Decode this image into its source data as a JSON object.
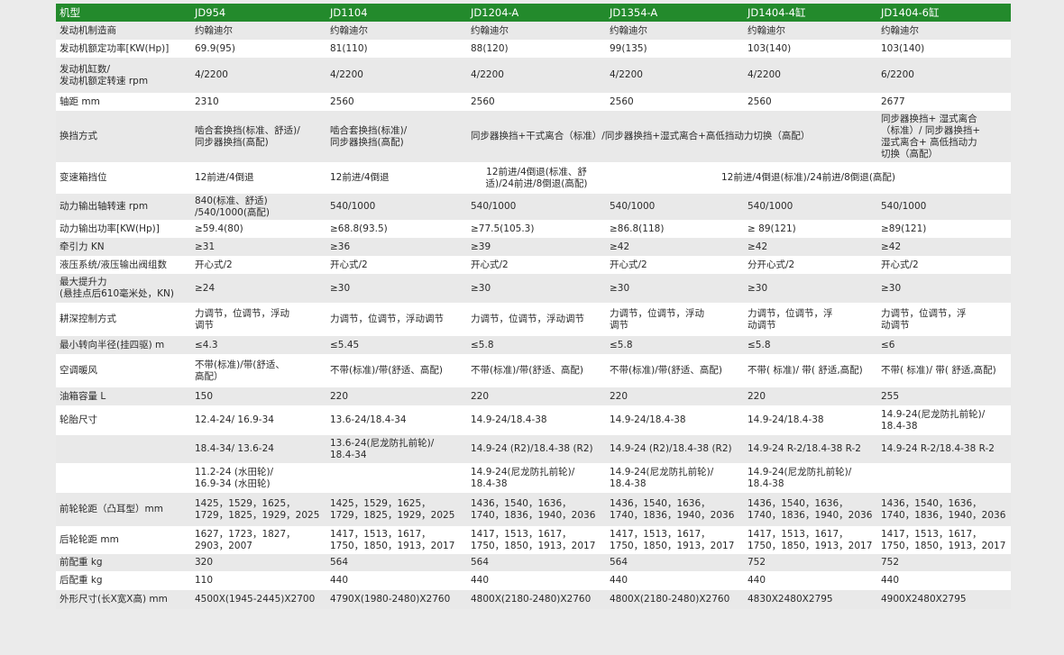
{
  "header": {
    "label": "机型",
    "models": [
      "JD954",
      "JD1104",
      "JD1204-A",
      "JD1354-A",
      "JD1404-4缸",
      "JD1404-6缸"
    ]
  },
  "colors": {
    "header_bg": "#238a2c",
    "row_alt": "#e9e9e9",
    "row": "#ffffff"
  },
  "rows": [
    {
      "label": "发动机制造商",
      "cells": [
        {
          "text": "约翰迪尔"
        },
        {
          "text": "约翰迪尔"
        },
        {
          "text": "约翰迪尔"
        },
        {
          "text": "约翰迪尔"
        },
        {
          "text": "约翰迪尔"
        },
        {
          "text": "约翰迪尔"
        }
      ]
    },
    {
      "label": "发动机额定功率[KW(Hp)]",
      "cells": [
        {
          "text": "69.9(95)"
        },
        {
          "text": "81(110)"
        },
        {
          "text": "88(120)"
        },
        {
          "text": "99(135)"
        },
        {
          "text": "103(140)"
        },
        {
          "text": "103(140)"
        }
      ]
    },
    {
      "label": "发动机缸数/\n发动机额定转速 rpm",
      "cells": [
        {
          "text": "4/2200"
        },
        {
          "text": "4/2200"
        },
        {
          "text": "4/2200"
        },
        {
          "text": "4/2200"
        },
        {
          "text": "4/2200"
        },
        {
          "text": "6/2200"
        }
      ]
    },
    {
      "label": "轴距 mm",
      "cells": [
        {
          "text": "2310"
        },
        {
          "text": "2560"
        },
        {
          "text": "2560"
        },
        {
          "text": "2560"
        },
        {
          "text": "2560"
        },
        {
          "text": "2677"
        }
      ]
    },
    {
      "label": "换挡方式",
      "cells": [
        {
          "text": "啮合套换挡(标准、舒适)/\n同步器换挡(高配)"
        },
        {
          "text": "啮合套换挡(标准)/\n同步器换挡(高配)"
        },
        {
          "text": "同步器换挡+干式离合（标准）/同步器换挡+湿式离合+高低挡动力切换（高配）",
          "colspan": 3
        },
        {
          "text": "同步器换挡+ 湿式离合\n（标准）/ 同步器换挡+\n湿式离合+ 高低挡动力\n切换（高配）"
        }
      ]
    },
    {
      "label": "变速箱挡位",
      "cells": [
        {
          "text": "12前进/4倒退"
        },
        {
          "text": "12前进/4倒退"
        },
        {
          "text": "12前进/4倒退(标准、舒\n适)/24前进/8倒退(高配)",
          "center": true
        },
        {
          "text": "12前进/4倒退(标准)/24前进/8倒退(高配)",
          "colspan": 3,
          "center": true
        }
      ]
    },
    {
      "label": "动力输出轴转速 rpm",
      "cells": [
        {
          "text": "840(标准、舒适)\n/540/1000(高配)"
        },
        {
          "text": "540/1000"
        },
        {
          "text": "540/1000"
        },
        {
          "text": "540/1000"
        },
        {
          "text": "540/1000"
        },
        {
          "text": "540/1000"
        }
      ]
    },
    {
      "label": "动力输出功率[KW(Hp)]",
      "cells": [
        {
          "text": "≥59.4(80)"
        },
        {
          "text": "≥68.8(93.5)"
        },
        {
          "text": "≥77.5(105.3)"
        },
        {
          "text": "≥86.8(118)"
        },
        {
          "text": "≥ 89(121)"
        },
        {
          "text": "≥89(121)"
        }
      ]
    },
    {
      "label": "牵引力 KN",
      "cells": [
        {
          "text": "≥31"
        },
        {
          "text": "≥36"
        },
        {
          "text": "≥39"
        },
        {
          "text": "≥42"
        },
        {
          "text": "≥42"
        },
        {
          "text": "≥42"
        }
      ]
    },
    {
      "label": "液压系统/液压输出阀组数",
      "cells": [
        {
          "text": "开心式/2"
        },
        {
          "text": "开心式/2"
        },
        {
          "text": "开心式/2"
        },
        {
          "text": "开心式/2"
        },
        {
          "text": "分开心式/2"
        },
        {
          "text": "开心式/2"
        }
      ]
    },
    {
      "label": "最大提升力\n(悬挂点后610毫米处，KN)",
      "cells": [
        {
          "text": "≥24"
        },
        {
          "text": "≥30"
        },
        {
          "text": "≥30"
        },
        {
          "text": "≥30"
        },
        {
          "text": "≥30"
        },
        {
          "text": "≥30"
        }
      ]
    },
    {
      "label": "耕深控制方式",
      "cells": [
        {
          "text": "力调节，位调节，浮动\n调节"
        },
        {
          "text": "力调节，位调节，浮动调节"
        },
        {
          "text": "力调节，位调节，浮动调节"
        },
        {
          "text": "力调节，位调节，浮动\n调节"
        },
        {
          "text": "力调节，位调节，浮\n动调节"
        },
        {
          "text": "力调节，位调节，浮\n动调节"
        }
      ]
    },
    {
      "label": "最小转向半径(挂四驱) m",
      "cells": [
        {
          "text": "≤4.3"
        },
        {
          "text": "≤5.45"
        },
        {
          "text": "≤5.8"
        },
        {
          "text": "≤5.8"
        },
        {
          "text": "≤5.8"
        },
        {
          "text": "≤6"
        }
      ]
    },
    {
      "label": "空调暖风",
      "cells": [
        {
          "text": "不带(标准)/带(舒适、\n高配）"
        },
        {
          "text": "不带(标准)/带(舒适、高配)"
        },
        {
          "text": "不带(标准)/带(舒适、高配)"
        },
        {
          "text": "不带(标准)/带(舒适、高配)"
        },
        {
          "text": "不带( 标准)/ 带( 舒适,高配)"
        },
        {
          "text": "不带( 标准)/ 带( 舒适,高配)"
        }
      ]
    },
    {
      "label": "油箱容量 L",
      "cells": [
        {
          "text": "150"
        },
        {
          "text": "220"
        },
        {
          "text": "220"
        },
        {
          "text": "220"
        },
        {
          "text": "220"
        },
        {
          "text": "255"
        }
      ]
    },
    {
      "label": "轮胎尺寸",
      "cells": [
        {
          "text": "12.4-24/ 16.9-34"
        },
        {
          "text": "13.6-24/18.4-34"
        },
        {
          "text": "14.9-24/18.4-38"
        },
        {
          "text": "14.9-24/18.4-38"
        },
        {
          "text": "14.9-24/18.4-38"
        },
        {
          "text": "14.9-24(尼龙防扎前轮)/\n18.4-38"
        }
      ]
    },
    {
      "label": "",
      "cells": [
        {
          "text": "18.4-34/ 13.6-24"
        },
        {
          "text": "13.6-24(尼龙防扎前轮)/\n18.4-34"
        },
        {
          "text": "14.9-24 (R2)/18.4-38 (R2)"
        },
        {
          "text": "14.9-24 (R2)/18.4-38 (R2)"
        },
        {
          "text": "14.9-24 R-2/18.4-38 R-2"
        },
        {
          "text": "14.9-24 R-2/18.4-38 R-2"
        }
      ]
    },
    {
      "label": "",
      "cells": [
        {
          "text": "11.2-24 (水田轮)/\n16.9-34 (水田轮)"
        },
        {
          "text": ""
        },
        {
          "text": "14.9-24(尼龙防扎前轮)/\n18.4-38"
        },
        {
          "text": "14.9-24(尼龙防扎前轮)/\n18.4-38"
        },
        {
          "text": "14.9-24(尼龙防扎前轮)/\n18.4-38"
        },
        {
          "text": ""
        }
      ]
    },
    {
      "label": "前轮轮距（凸耳型）mm",
      "cells": [
        {
          "text": "1425，1529，1625，\n1729，1825，1929，2025"
        },
        {
          "text": "1425，1529，1625，\n1729，1825，1929，2025"
        },
        {
          "text": "1436，1540，1636，\n1740，1836，1940，2036"
        },
        {
          "text": "1436，1540，1636，\n1740，1836，1940，2036"
        },
        {
          "text": "1436，1540，1636，\n1740，1836，1940，2036"
        },
        {
          "text": "1436，1540，1636，\n1740，1836，1940，2036"
        }
      ]
    },
    {
      "label": "后轮轮距 mm",
      "cells": [
        {
          "text": "1627，1723，1827，\n2903，2007"
        },
        {
          "text": "1417，1513，1617，\n1750，1850，1913，2017"
        },
        {
          "text": "1417，1513，1617，\n1750，1850，1913，2017"
        },
        {
          "text": "1417，1513，1617，\n1750，1850，1913，2017"
        },
        {
          "text": "1417，1513，1617，\n1750，1850，1913，2017"
        },
        {
          "text": "1417，1513，1617，\n1750，1850，1913，2017"
        }
      ]
    },
    {
      "label": "前配重 kg",
      "cells": [
        {
          "text": "320"
        },
        {
          "text": "564"
        },
        {
          "text": "564"
        },
        {
          "text": "564"
        },
        {
          "text": "752"
        },
        {
          "text": "752"
        }
      ]
    },
    {
      "label": "后配重 kg",
      "cells": [
        {
          "text": "110"
        },
        {
          "text": "440"
        },
        {
          "text": "440"
        },
        {
          "text": "440"
        },
        {
          "text": "440"
        },
        {
          "text": "440"
        }
      ]
    },
    {
      "label": "外形尺寸(长X宽X高) mm",
      "cells": [
        {
          "text": "4500X(1945-2445)X2700"
        },
        {
          "text": "4790X(1980-2480)X2760"
        },
        {
          "text": "4800X(2180-2480)X2760"
        },
        {
          "text": "4800X(2180-2480)X2760"
        },
        {
          "text": "4830X2480X2795"
        },
        {
          "text": "4900X2480X2795"
        }
      ]
    }
  ]
}
